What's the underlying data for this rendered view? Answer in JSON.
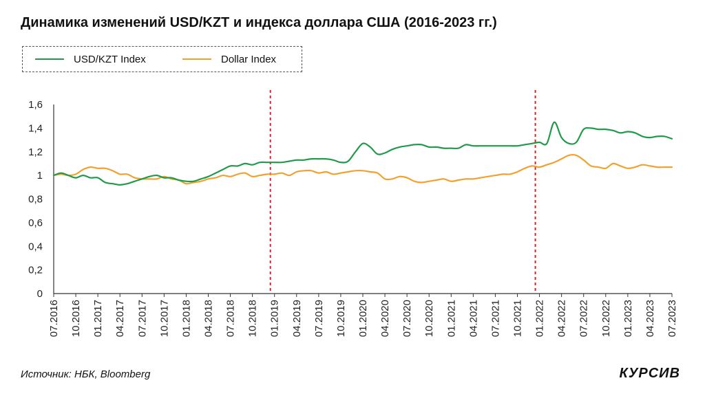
{
  "title": "Динамика изменений USD/KZT и индекса доллара США (2016-2023 гг.)",
  "source": "Источник: НБК, Bloomberg",
  "logo": "КУРСИВ",
  "chart_data": {
    "type": "line",
    "title": "Динамика изменений USD/KZT и индекса доллара США (2016-2023 гг.)",
    "legend_position": "top-left",
    "grid": false,
    "ylim": [
      0,
      1.6
    ],
    "yticks": [
      "0",
      "0,2",
      "0,4",
      "0,6",
      "0,8",
      "1",
      "1,2",
      "1,4",
      "1,6"
    ],
    "xlim": [
      0,
      84
    ],
    "xticks": [
      "07.2016",
      "10.2016",
      "01.2017",
      "04.2017",
      "07.2017",
      "10.2017",
      "01.2018",
      "04.2018",
      "07.2018",
      "10.2018",
      "01.2019",
      "04.2019",
      "07.2019",
      "10.2019",
      "01.2020",
      "04.2020",
      "07.2020",
      "10.2020",
      "01.2021",
      "04.2021",
      "07.2021",
      "10.2021",
      "01.2022",
      "04.2022",
      "07.2022",
      "10.2022",
      "01.2023",
      "04.2023",
      "07.2023"
    ],
    "reference_lines": [
      {
        "x": "01.2019",
        "color": "#e02020",
        "style": "dashed"
      },
      {
        "x": "01.2022",
        "color": "#e02020",
        "style": "dashed"
      }
    ],
    "series": [
      {
        "name": "USD/KZT Index",
        "color": "#1e9a48",
        "x": [
          0,
          1,
          2,
          3,
          4,
          5,
          6,
          7,
          8,
          9,
          10,
          11,
          12,
          13,
          14,
          15,
          16,
          17,
          18,
          19,
          20,
          21,
          22,
          23,
          24,
          25,
          26,
          27,
          28,
          29,
          30,
          31,
          32,
          33,
          34,
          35,
          36,
          37,
          38,
          39,
          40,
          41,
          42,
          43,
          44,
          45,
          46,
          47,
          48,
          49,
          50,
          51,
          52,
          53,
          54,
          55,
          56,
          57,
          58,
          59,
          60,
          61,
          62,
          63,
          64,
          65,
          66,
          67,
          68,
          69,
          70,
          71,
          72,
          73,
          74,
          75,
          76,
          77,
          78,
          79,
          80,
          81,
          82,
          83,
          84
        ],
        "values": [
          1.0,
          1.02,
          1.0,
          0.98,
          1.0,
          0.98,
          0.98,
          0.94,
          0.93,
          0.92,
          0.93,
          0.95,
          0.97,
          0.99,
          1.0,
          0.98,
          0.98,
          0.96,
          0.95,
          0.95,
          0.97,
          0.99,
          1.02,
          1.05,
          1.08,
          1.08,
          1.1,
          1.09,
          1.11,
          1.11,
          1.11,
          1.11,
          1.12,
          1.13,
          1.13,
          1.14,
          1.14,
          1.14,
          1.13,
          1.11,
          1.12,
          1.2,
          1.27,
          1.24,
          1.18,
          1.19,
          1.22,
          1.24,
          1.25,
          1.26,
          1.26,
          1.24,
          1.24,
          1.23,
          1.23,
          1.23,
          1.26,
          1.25,
          1.25,
          1.25,
          1.25,
          1.25,
          1.25,
          1.25,
          1.26,
          1.27,
          1.28,
          1.27,
          1.45,
          1.32,
          1.27,
          1.28,
          1.39,
          1.4,
          1.39,
          1.39,
          1.38,
          1.36,
          1.37,
          1.36,
          1.33,
          1.32,
          1.33,
          1.33,
          1.31
        ]
      },
      {
        "name": "Dollar Index",
        "color": "#f2a02e",
        "x": [
          0,
          1,
          2,
          3,
          4,
          5,
          6,
          7,
          8,
          9,
          10,
          11,
          12,
          13,
          14,
          15,
          16,
          17,
          18,
          19,
          20,
          21,
          22,
          23,
          24,
          25,
          26,
          27,
          28,
          29,
          30,
          31,
          32,
          33,
          34,
          35,
          36,
          37,
          38,
          39,
          40,
          41,
          42,
          43,
          44,
          45,
          46,
          47,
          48,
          49,
          50,
          51,
          52,
          53,
          54,
          55,
          56,
          57,
          58,
          59,
          60,
          61,
          62,
          63,
          64,
          65,
          66,
          67,
          68,
          69,
          70,
          71,
          72,
          73,
          74,
          75,
          76,
          77,
          78,
          79,
          80,
          81,
          82,
          83,
          84
        ],
        "values": [
          1.0,
          1.01,
          1.0,
          1.01,
          1.05,
          1.07,
          1.06,
          1.06,
          1.04,
          1.01,
          1.01,
          0.98,
          0.97,
          0.97,
          0.97,
          0.99,
          0.97,
          0.96,
          0.93,
          0.94,
          0.95,
          0.97,
          0.98,
          1.0,
          0.99,
          1.01,
          1.02,
          0.99,
          1.0,
          1.01,
          1.01,
          1.02,
          1.0,
          1.03,
          1.04,
          1.04,
          1.02,
          1.03,
          1.01,
          1.02,
          1.03,
          1.04,
          1.04,
          1.03,
          1.02,
          0.97,
          0.97,
          0.99,
          0.98,
          0.95,
          0.94,
          0.95,
          0.96,
          0.97,
          0.95,
          0.96,
          0.97,
          0.97,
          0.98,
          0.99,
          1.0,
          1.01,
          1.01,
          1.03,
          1.06,
          1.08,
          1.07,
          1.09,
          1.11,
          1.14,
          1.17,
          1.17,
          1.13,
          1.08,
          1.07,
          1.06,
          1.1,
          1.08,
          1.06,
          1.07,
          1.09,
          1.08,
          1.07,
          1.07,
          1.07
        ]
      }
    ]
  }
}
